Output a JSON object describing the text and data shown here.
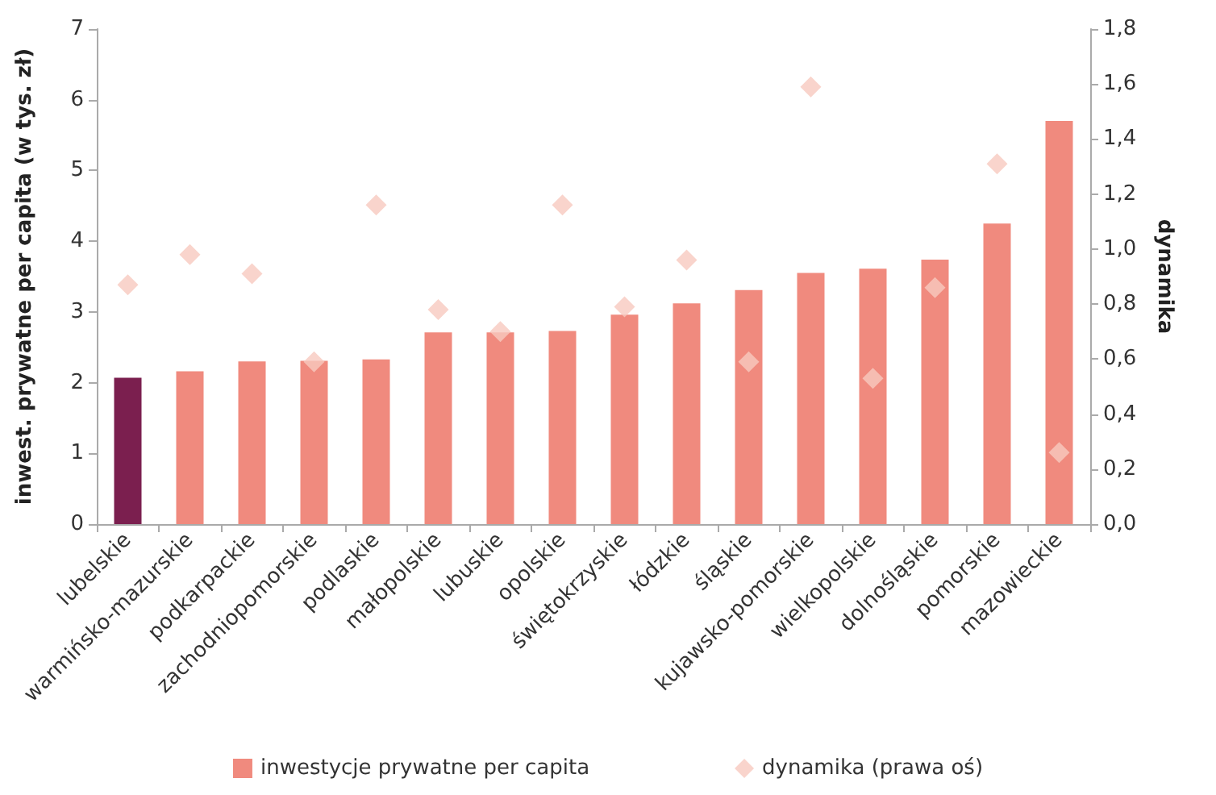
{
  "chart_data": {
    "type": "bar",
    "ylabel": "inwest. prywatne per capita (w tys. zł)",
    "y2label": "dynamika",
    "categories": [
      "lubelskie",
      "warmińsko-mazurskie",
      "podkarpackie",
      "zachodniopomorskie",
      "podlaskie",
      "małopolskie",
      "lubuskie",
      "opolskie",
      "świętokrzyskie",
      "łódzkie",
      "śląskie",
      "kujawsko-pomorskie",
      "wielkopolskie",
      "dolnośląskie",
      "pomorskie",
      "mazowieckie"
    ],
    "series": [
      {
        "name": "inwestycje prywatne per capita",
        "color": "#f08a7e",
        "colors": [
          "#7b1f4f",
          "#f08a7e",
          "#f08a7e",
          "#f08a7e",
          "#f08a7e",
          "#f08a7e",
          "#f08a7e",
          "#f08a7e",
          "#f08a7e",
          "#f08a7e",
          "#f08a7e",
          "#f08a7e",
          "#f08a7e",
          "#f08a7e",
          "#f08a7e",
          "#f08a7e"
        ],
        "values": [
          2.07,
          2.16,
          2.3,
          2.31,
          2.33,
          2.71,
          2.71,
          2.73,
          2.96,
          3.12,
          3.31,
          3.55,
          3.61,
          3.74,
          4.25,
          5.7
        ]
      },
      {
        "name": "dynamika (prawa oś)",
        "type": "scatter",
        "axis": "y2",
        "color": "#f8c9bf",
        "x": [
          "lubelskie",
          "warmińsko-mazurskie",
          "podkarpackie",
          "zachodniopomorskie",
          "podlaskie",
          "małopolskie",
          "lubuskie",
          "opolskie",
          "świętokrzyskie",
          "łódzkie",
          "śląskie",
          "kujawsko-pomorskie",
          "wielkopolskie",
          "dolnośląskie",
          "pomorskie",
          "mazowieckie"
        ],
        "values": [
          0.87,
          0.98,
          0.91,
          0.59,
          1.16,
          0.78,
          0.7,
          1.16,
          0.79,
          0.96,
          0.59,
          1.59,
          0.53,
          0.86,
          1.31,
          0.26
        ]
      }
    ],
    "ylim": [
      0,
      7
    ],
    "yticks": [
      0,
      1,
      2,
      3,
      4,
      5,
      6,
      7
    ],
    "y2lim": [
      0,
      1.8
    ],
    "y2ticks": [
      {
        "value": 0,
        "label": "0,0"
      },
      {
        "value": 0.2,
        "label": "0,2"
      },
      {
        "value": 0.4,
        "label": "0,4"
      },
      {
        "value": 0.6,
        "label": "0,6"
      },
      {
        "value": 0.8,
        "label": "0,8"
      },
      {
        "value": 1,
        "label": "1,0"
      },
      {
        "value": 1.2,
        "label": "1,2"
      },
      {
        "value": 1.4,
        "label": "1,4"
      },
      {
        "value": 1.6,
        "label": "1,6"
      },
      {
        "value": 1.8,
        "label": "1,8"
      }
    ],
    "grid": false,
    "legend": "bottom",
    "marker": "diamond"
  }
}
